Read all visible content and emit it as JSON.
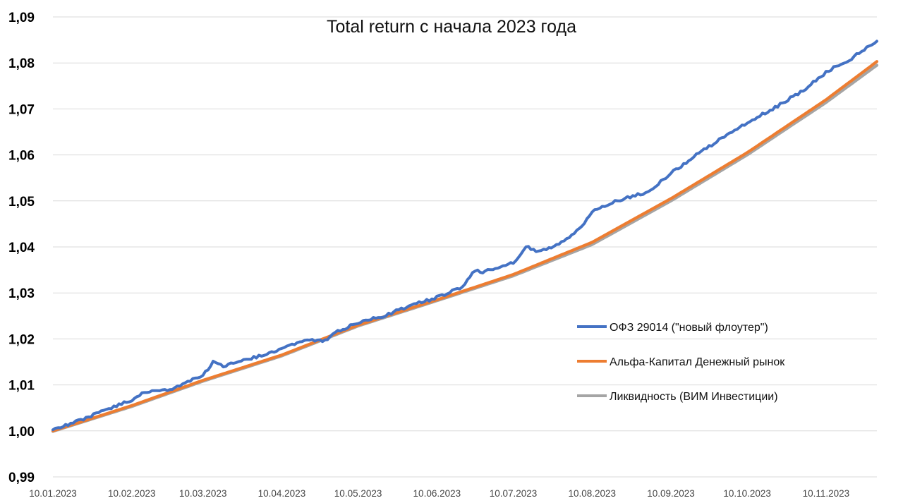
{
  "chart_data": {
    "type": "line",
    "title": "Total return с начала 2023 года",
    "xlabel": "",
    "ylabel": "",
    "ylim": [
      0.99,
      1.09
    ],
    "yticks": [
      "1,09",
      "1,08",
      "1,07",
      "1,06",
      "1,05",
      "1,04",
      "1,03",
      "1,02",
      "1,01",
      "1,00",
      "0,99"
    ],
    "ytick_values": [
      1.09,
      1.08,
      1.07,
      1.06,
      1.05,
      1.04,
      1.03,
      1.02,
      1.01,
      1.0,
      0.99
    ],
    "xticks": [
      "10.01.2023",
      "10.02.2023",
      "10.03.2023",
      "10.04.2023",
      "10.05.2023",
      "10.06.2023",
      "10.07.2023",
      "10.08.2023",
      "10.09.2023",
      "10.10.2023",
      "10.11.2023"
    ],
    "xlim": [
      "2023-01-10",
      "2023-11-30"
    ],
    "grid": true,
    "legend_position": "right",
    "series": [
      {
        "name": "ОФЗ 29014 (\"новый флоутер\")",
        "color": "#4472C4",
        "x": [
          "2023-01-10",
          "2023-01-20",
          "2023-01-31",
          "2023-02-10",
          "2023-02-15",
          "2023-02-20",
          "2023-02-28",
          "2023-03-05",
          "2023-03-10",
          "2023-03-14",
          "2023-03-18",
          "2023-03-24",
          "2023-04-05",
          "2023-04-10",
          "2023-04-20",
          "2023-04-27",
          "2023-05-01",
          "2023-05-10",
          "2023-05-20",
          "2023-06-01",
          "2023-06-10",
          "2023-06-20",
          "2023-06-25",
          "2023-06-28",
          "2023-07-01",
          "2023-07-10",
          "2023-07-15",
          "2023-07-20",
          "2023-07-25",
          "2023-08-01",
          "2023-08-05",
          "2023-08-10",
          "2023-08-15",
          "2023-08-20",
          "2023-09-01",
          "2023-09-10",
          "2023-09-20",
          "2023-10-01",
          "2023-10-10",
          "2023-10-20",
          "2023-11-01",
          "2023-11-10",
          "2023-11-20",
          "2023-11-30"
        ],
        "y": [
          1.0002,
          1.0022,
          1.0045,
          1.0068,
          1.0085,
          1.0085,
          1.0095,
          1.011,
          1.012,
          1.015,
          1.014,
          1.015,
          1.0168,
          1.018,
          1.02,
          1.0195,
          1.0215,
          1.0235,
          1.025,
          1.0275,
          1.029,
          1.0312,
          1.035,
          1.0345,
          1.035,
          1.0365,
          1.04,
          1.039,
          1.04,
          1.042,
          1.044,
          1.0475,
          1.049,
          1.05,
          1.052,
          1.056,
          1.06,
          1.064,
          1.067,
          1.07,
          1.074,
          1.078,
          1.081,
          1.0847
        ]
      },
      {
        "name": "Альфа-Капитал Денежный рынок",
        "color": "#ED7D31",
        "x": [
          "2023-01-10",
          "2023-02-10",
          "2023-03-10",
          "2023-04-10",
          "2023-05-10",
          "2023-06-10",
          "2023-07-10",
          "2023-08-10",
          "2023-09-10",
          "2023-10-10",
          "2023-11-10",
          "2023-11-30"
        ],
        "y": [
          1.0,
          1.0055,
          1.011,
          1.0165,
          1.023,
          1.0285,
          1.034,
          1.041,
          1.0505,
          1.0605,
          1.072,
          1.0803
        ]
      },
      {
        "name": "Ликвидность (ВИМ Инвестиции)",
        "color": "#A5A5A5",
        "x": [
          "2023-01-10",
          "2023-02-10",
          "2023-03-10",
          "2023-04-10",
          "2023-05-10",
          "2023-06-10",
          "2023-07-10",
          "2023-08-10",
          "2023-09-10",
          "2023-10-10",
          "2023-11-10",
          "2023-11-30"
        ],
        "y": [
          0.9999,
          1.0053,
          1.0108,
          1.0163,
          1.0228,
          1.0283,
          1.0337,
          1.0405,
          1.05,
          1.06,
          1.0714,
          1.0795
        ]
      }
    ]
  }
}
